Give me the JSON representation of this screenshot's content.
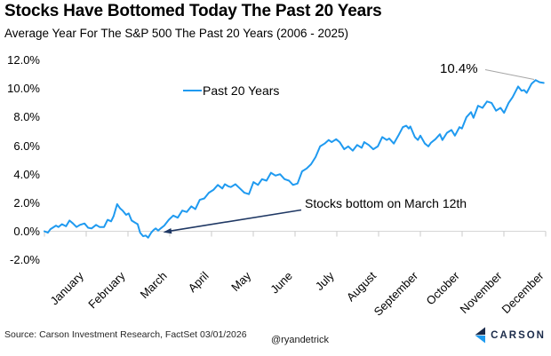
{
  "header": {
    "title": "Stocks Have Bottomed Today The Past 20 Years",
    "subtitle": "Average Year For The S&P 500 The Past 20 Years (2006 - 2025)"
  },
  "legend": {
    "label": "Past 20 Years"
  },
  "annotations": {
    "peak_label": "10.4%",
    "bottom_label": "Stocks bottom on March 12th"
  },
  "footer": {
    "source": "Source: Carson Investment Research, FactSet 03/01/2026",
    "handle": "@ryandetrick",
    "brand": "CARSON"
  },
  "colors": {
    "line": "#1f9af0",
    "arrow_navy": "#1f3864",
    "leader_gray": "#a6a6a6",
    "axis_gray": "#d6d6d6",
    "tick_gray": "#c9c9c9",
    "brand_navy": "#1b2b4a",
    "brand_blue": "#1e9bf0"
  },
  "chart_data": {
    "type": "line",
    "title": "Stocks Have Bottomed Today The Past 20 Years",
    "subtitle": "Average Year For The S&P 500 The Past 20 Years (2006 - 2025)",
    "legend_position": "top-center",
    "grid": false,
    "x_axis": {
      "categories": [
        "January",
        "February",
        "March",
        "April",
        "May",
        "June",
        "July",
        "August",
        "September",
        "October",
        "November",
        "December"
      ],
      "label_rotation_deg": 45
    },
    "y_axis": {
      "min": -2,
      "max": 12,
      "tick_step": 2,
      "format": "percent",
      "ticks": [
        {
          "v": 12,
          "label": "12.0%"
        },
        {
          "v": 10,
          "label": "10.0%"
        },
        {
          "v": 8,
          "label": "8.0%"
        },
        {
          "v": 6,
          "label": "6.0%"
        },
        {
          "v": 4,
          "label": "4.0%"
        },
        {
          "v": 2,
          "label": "2.0%"
        },
        {
          "v": 0,
          "label": "0.0%"
        },
        {
          "v": -2,
          "label": "-2.0%"
        }
      ]
    },
    "annotations": [
      {
        "text": "10.4%",
        "target": "year-end value",
        "value_pct": 10.4
      },
      {
        "text": "Stocks bottom on March 12th",
        "target": "mid-March low",
        "value_pct": -0.45
      }
    ],
    "series": [
      {
        "name": "Past 20 Years",
        "color": "#1f9af0",
        "x_unit": "fraction of year (0 = Jan 1, 1 = Dec 31)",
        "y_unit": "percent return",
        "points": [
          [
            0,
            0
          ],
          [
            0.007,
            -0.1
          ],
          [
            0.012,
            0.15
          ],
          [
            0.023,
            0.4
          ],
          [
            0.028,
            0.3
          ],
          [
            0.035,
            0.5
          ],
          [
            0.043,
            0.35
          ],
          [
            0.05,
            0.75
          ],
          [
            0.057,
            0.55
          ],
          [
            0.064,
            0.3
          ],
          [
            0.071,
            0.45
          ],
          [
            0.08,
            0.55
          ],
          [
            0.087,
            0.25
          ],
          [
            0.094,
            0.2
          ],
          [
            0.103,
            0.45
          ],
          [
            0.11,
            0.3
          ],
          [
            0.119,
            0.3
          ],
          [
            0.126,
            0.8
          ],
          [
            0.133,
            0.7
          ],
          [
            0.138,
            1.05
          ],
          [
            0.145,
            1.9
          ],
          [
            0.151,
            1.6
          ],
          [
            0.156,
            1.45
          ],
          [
            0.163,
            1.15
          ],
          [
            0.168,
            1.25
          ],
          [
            0.174,
            0.75
          ],
          [
            0.181,
            0.6
          ],
          [
            0.186,
            0.5
          ],
          [
            0.191,
            -0.1
          ],
          [
            0.197,
            -0.35
          ],
          [
            0.202,
            -0.3
          ],
          [
            0.207,
            -0.45
          ],
          [
            0.213,
            -0.1
          ],
          [
            0.218,
            0.1
          ],
          [
            0.222,
            0.2
          ],
          [
            0.227,
            0.05
          ],
          [
            0.232,
            0.2
          ],
          [
            0.239,
            0.4
          ],
          [
            0.248,
            0.8
          ],
          [
            0.257,
            1.1
          ],
          [
            0.266,
            0.95
          ],
          [
            0.275,
            1.45
          ],
          [
            0.284,
            1.35
          ],
          [
            0.293,
            1.75
          ],
          [
            0.301,
            1.55
          ],
          [
            0.31,
            2.2
          ],
          [
            0.319,
            2.3
          ],
          [
            0.328,
            2.7
          ],
          [
            0.337,
            2.9
          ],
          [
            0.346,
            3.25
          ],
          [
            0.355,
            3.0
          ],
          [
            0.36,
            3.3
          ],
          [
            0.367,
            3.15
          ],
          [
            0.372,
            3.1
          ],
          [
            0.381,
            3.3
          ],
          [
            0.39,
            3.0
          ],
          [
            0.399,
            2.7
          ],
          [
            0.408,
            2.6
          ],
          [
            0.417,
            3.45
          ],
          [
            0.426,
            3.25
          ],
          [
            0.434,
            3.65
          ],
          [
            0.443,
            3.55
          ],
          [
            0.452,
            4.1
          ],
          [
            0.461,
            3.9
          ],
          [
            0.47,
            4.0
          ],
          [
            0.479,
            3.65
          ],
          [
            0.488,
            3.55
          ],
          [
            0.496,
            3.25
          ],
          [
            0.505,
            3.35
          ],
          [
            0.514,
            4.2
          ],
          [
            0.523,
            4.4
          ],
          [
            0.532,
            4.7
          ],
          [
            0.541,
            5.2
          ],
          [
            0.55,
            5.95
          ],
          [
            0.559,
            6.15
          ],
          [
            0.567,
            6.4
          ],
          [
            0.573,
            6.25
          ],
          [
            0.582,
            6.45
          ],
          [
            0.589,
            6.25
          ],
          [
            0.598,
            5.75
          ],
          [
            0.606,
            5.95
          ],
          [
            0.615,
            5.65
          ],
          [
            0.624,
            6.05
          ],
          [
            0.633,
            5.85
          ],
          [
            0.638,
            6.25
          ],
          [
            0.647,
            6.05
          ],
          [
            0.656,
            5.75
          ],
          [
            0.665,
            5.95
          ],
          [
            0.674,
            6.6
          ],
          [
            0.683,
            6.4
          ],
          [
            0.688,
            6.5
          ],
          [
            0.697,
            6.15
          ],
          [
            0.706,
            6.7
          ],
          [
            0.715,
            7.3
          ],
          [
            0.722,
            7.4
          ],
          [
            0.727,
            7.2
          ],
          [
            0.73,
            7.35
          ],
          [
            0.739,
            6.6
          ],
          [
            0.745,
            6.4
          ],
          [
            0.75,
            6.7
          ],
          [
            0.759,
            6.15
          ],
          [
            0.766,
            5.95
          ],
          [
            0.771,
            6.2
          ],
          [
            0.78,
            6.45
          ],
          [
            0.789,
            6.8
          ],
          [
            0.794,
            6.4
          ],
          [
            0.803,
            6.9
          ],
          [
            0.812,
            7.1
          ],
          [
            0.819,
            6.7
          ],
          [
            0.828,
            7.3
          ],
          [
            0.833,
            7.2
          ],
          [
            0.842,
            8.0
          ],
          [
            0.851,
            8.35
          ],
          [
            0.856,
            7.95
          ],
          [
            0.865,
            8.8
          ],
          [
            0.874,
            8.65
          ],
          [
            0.883,
            9.1
          ],
          [
            0.892,
            9.0
          ],
          [
            0.901,
            8.45
          ],
          [
            0.91,
            8.65
          ],
          [
            0.917,
            8.3
          ],
          [
            0.926,
            9.0
          ],
          [
            0.934,
            9.4
          ],
          [
            0.945,
            10.15
          ],
          [
            0.952,
            9.85
          ],
          [
            0.957,
            9.9
          ],
          [
            0.962,
            9.7
          ],
          [
            0.972,
            10.35
          ],
          [
            0.98,
            10.6
          ],
          [
            0.988,
            10.45
          ],
          [
            0.996,
            10.4
          ]
        ]
      }
    ]
  }
}
